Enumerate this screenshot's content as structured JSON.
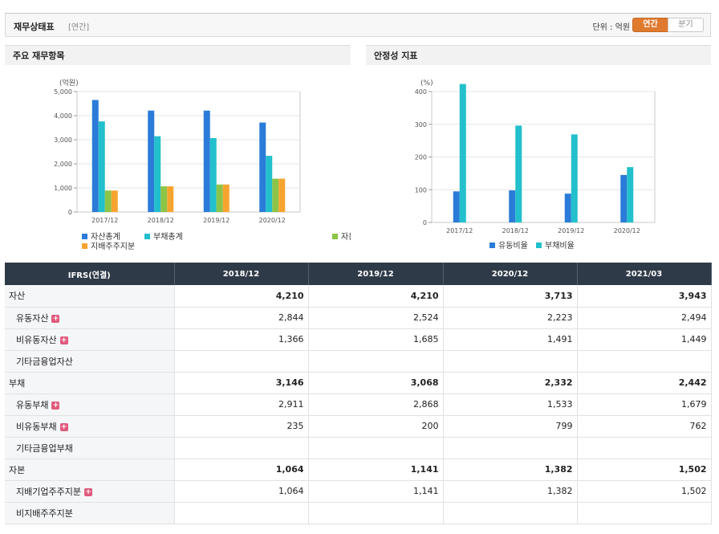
{
  "header": {
    "title": "재무상태표",
    "subtitle": "[연간]",
    "unit": "단위 : 억원",
    "annual_label": "연간",
    "quarter_label": "분기"
  },
  "left_panel": {
    "title": "주요 재무항목"
  },
  "right_panel": {
    "title": "안정성 지표"
  },
  "colors": {
    "blue": "#2b7bd8",
    "teal": "#22c0cc",
    "green": "#8cc447",
    "orange": "#f7a42f",
    "header_bg": "#2f3a48",
    "accent": "#e07a2e"
  },
  "chart_data": [
    {
      "type": "bar",
      "title": "주요 재무항목",
      "unit": "(억원)",
      "categories": [
        "2017/12",
        "2018/12",
        "2019/12",
        "2020/12"
      ],
      "ylim": [
        0,
        5000
      ],
      "yticks": [
        "0",
        "1,000",
        "2,000",
        "3,000",
        "4,000",
        "5,000"
      ],
      "ytick_values": [
        0,
        1000,
        2000,
        3000,
        4000,
        5000
      ],
      "series": [
        {
          "name": "자산총계",
          "color": "#2b7bd8",
          "values": [
            4650,
            4210,
            4210,
            3713
          ]
        },
        {
          "name": "부채총계",
          "color": "#22c0cc",
          "values": [
            3760,
            3146,
            3068,
            2332
          ]
        },
        {
          "name": "자본총계",
          "color": "#8cc447",
          "values": [
            890,
            1064,
            1141,
            1382
          ]
        },
        {
          "name": "지배주주지분",
          "color": "#f7a42f",
          "values": [
            890,
            1064,
            1141,
            1382
          ]
        }
      ]
    },
    {
      "type": "bar",
      "title": "안정성 지표",
      "unit": "(%)",
      "categories": [
        "2017/12",
        "2018/12",
        "2019/12",
        "2020/12"
      ],
      "ylim": [
        0,
        400
      ],
      "yticks": [
        "0",
        "100",
        "200",
        "300",
        "400"
      ],
      "ytick_values": [
        0,
        100,
        200,
        300,
        400
      ],
      "series": [
        {
          "name": "유동비율",
          "color": "#2b7bd8",
          "values": [
            95,
            98,
            88,
            145
          ]
        },
        {
          "name": "부채비율",
          "color": "#22c0cc",
          "values": [
            423,
            296,
            269,
            169
          ]
        }
      ]
    }
  ],
  "table": {
    "headers": [
      "IFRS(연결)",
      "2018/12",
      "2019/12",
      "2020/12",
      "2021/03"
    ],
    "rows": [
      {
        "label": "자산",
        "type": "main",
        "plus": false,
        "values": [
          "4,210",
          "4,210",
          "3,713",
          "3,943"
        ]
      },
      {
        "label": "유동자산",
        "type": "sub",
        "plus": true,
        "values": [
          "2,844",
          "2,524",
          "2,223",
          "2,494"
        ]
      },
      {
        "label": "비유동자산",
        "type": "sub",
        "plus": true,
        "values": [
          "1,366",
          "1,685",
          "1,491",
          "1,449"
        ]
      },
      {
        "label": "기타금융업자산",
        "type": "sub",
        "plus": false,
        "values": [
          "",
          "",
          "",
          ""
        ]
      },
      {
        "label": "부채",
        "type": "main",
        "plus": false,
        "values": [
          "3,146",
          "3,068",
          "2,332",
          "2,442"
        ]
      },
      {
        "label": "유동부채",
        "type": "sub",
        "plus": true,
        "values": [
          "2,911",
          "2,868",
          "1,533",
          "1,679"
        ]
      },
      {
        "label": "비유동부채",
        "type": "sub",
        "plus": true,
        "values": [
          "235",
          "200",
          "799",
          "762"
        ]
      },
      {
        "label": "기타금융업부채",
        "type": "sub",
        "plus": false,
        "values": [
          "",
          "",
          "",
          ""
        ]
      },
      {
        "label": "자본",
        "type": "main",
        "plus": false,
        "values": [
          "1,064",
          "1,141",
          "1,382",
          "1,502"
        ]
      },
      {
        "label": "지배기업주주지분",
        "type": "sub",
        "plus": true,
        "values": [
          "1,064",
          "1,141",
          "1,382",
          "1,502"
        ]
      },
      {
        "label": "비지배주주지분",
        "type": "sub",
        "plus": false,
        "values": [
          "",
          "",
          "",
          ""
        ]
      }
    ]
  }
}
